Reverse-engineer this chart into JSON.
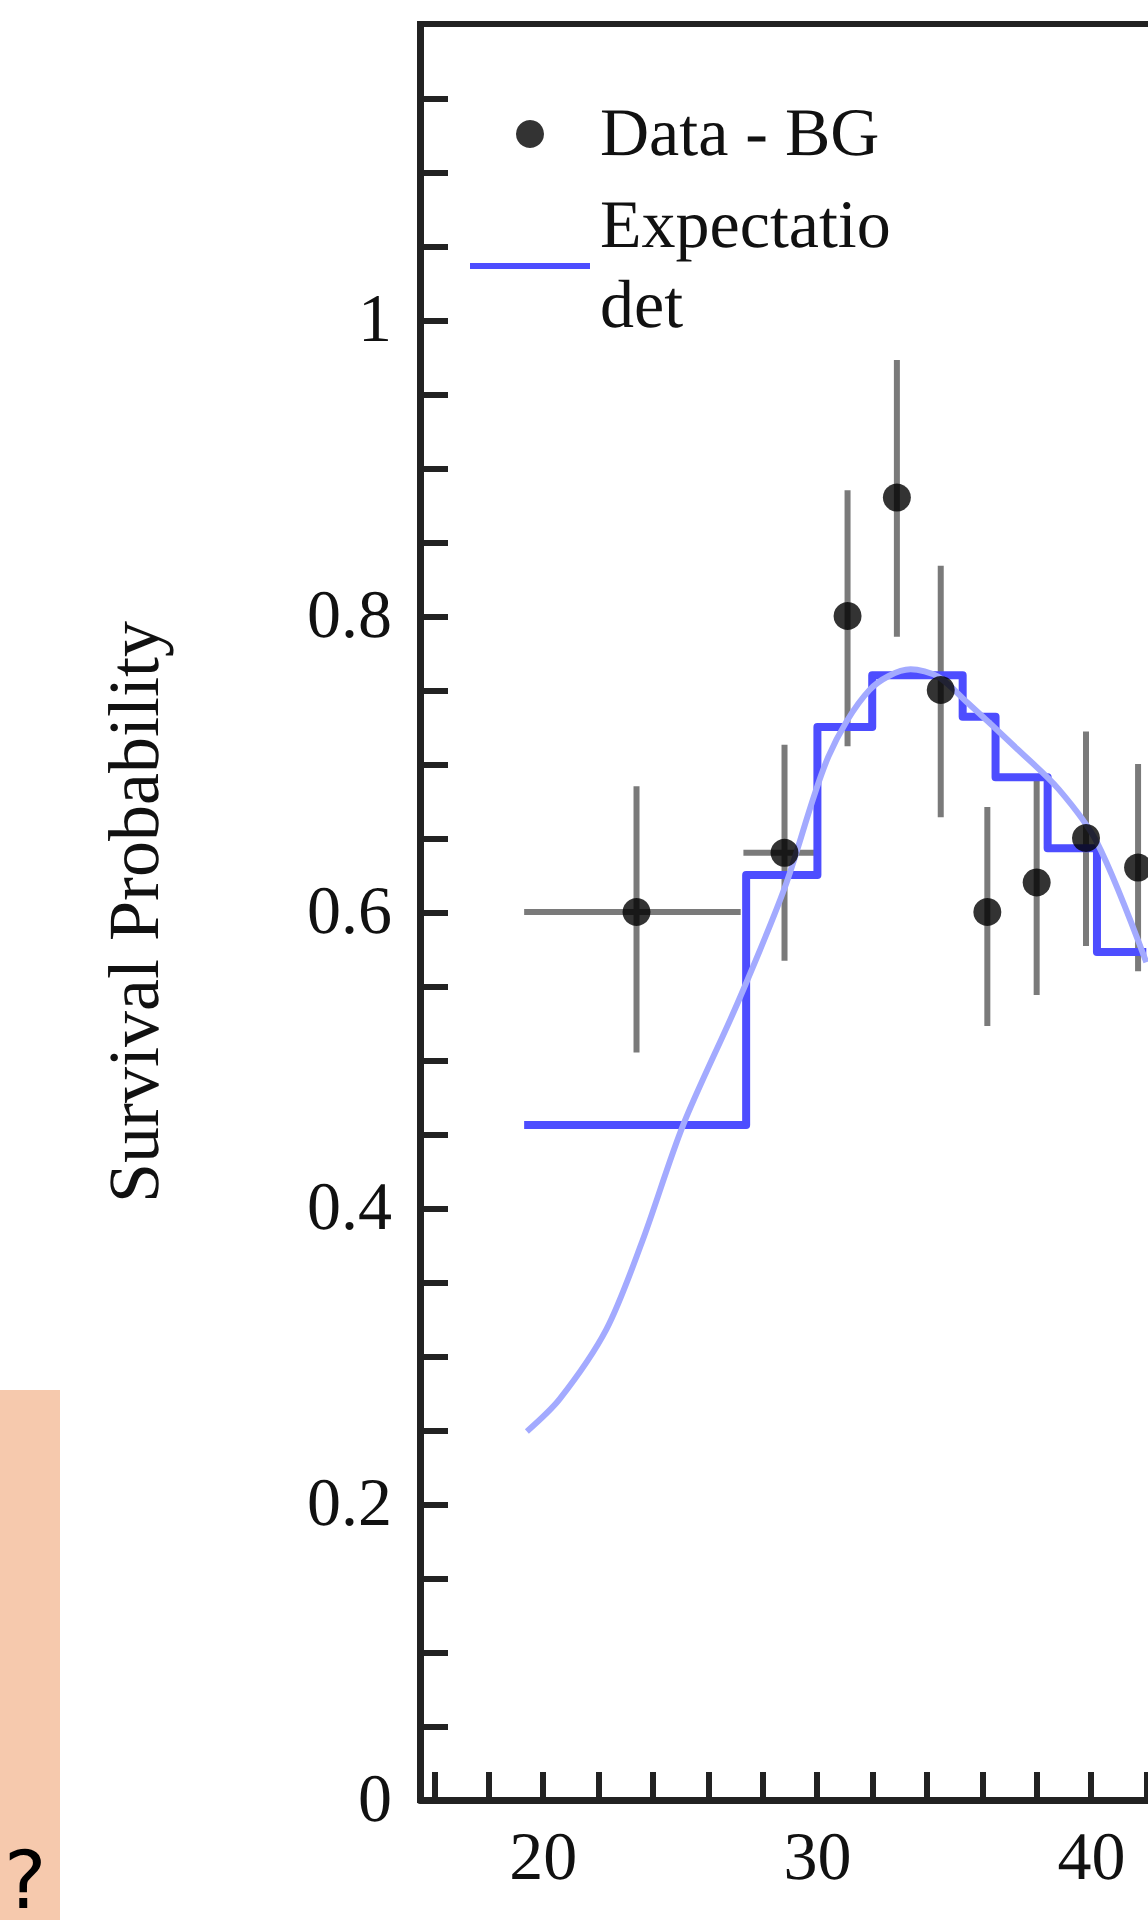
{
  "chart_data": {
    "type": "scatter",
    "ylabel": "Survival Probability",
    "xlim": [
      15.5,
      42.5
    ],
    "xticks": [
      {
        "value": 16,
        "label": null
      },
      {
        "value": 18,
        "label": null
      },
      20,
      {
        "value": 22,
        "label": null
      },
      {
        "value": 24,
        "label": null
      },
      {
        "value": 26,
        "label": null
      },
      {
        "value": 28,
        "label": null
      },
      30,
      {
        "value": 32,
        "label": null
      },
      {
        "value": 34,
        "label": null
      },
      {
        "value": 36,
        "label": null
      },
      {
        "value": 38,
        "label": null
      },
      40,
      {
        "value": 42,
        "label": null
      }
    ],
    "ylim": [
      0,
      1.2
    ],
    "yticks": [
      0,
      {
        "value": 0.05,
        "label": null
      },
      {
        "value": 0.1,
        "label": null
      },
      {
        "value": 0.15,
        "label": null
      },
      0.2,
      {
        "value": 0.25,
        "label": null
      },
      {
        "value": 0.3,
        "label": null
      },
      {
        "value": 0.35,
        "label": null
      },
      0.4,
      {
        "value": 0.45,
        "label": null
      },
      {
        "value": 0.5,
        "label": null
      },
      {
        "value": 0.55,
        "label": null
      },
      0.6,
      {
        "value": 0.65,
        "label": null
      },
      {
        "value": 0.7,
        "label": null
      },
      {
        "value": 0.75,
        "label": null
      },
      0.8,
      {
        "value": 0.85,
        "label": null
      },
      {
        "value": 0.9,
        "label": null
      },
      {
        "value": 0.95,
        "label": null
      },
      1,
      {
        "value": 1.05,
        "label": null
      },
      {
        "value": 1.1,
        "label": null
      },
      {
        "value": 1.15,
        "label": null
      }
    ],
    "grid": false,
    "legend": "top left",
    "marker": "none",
    "annotations": [
      "?"
    ],
    "series": [
      {
        "name": "Data - BG",
        "marker": "circle",
        "color": "#000000",
        "x": [
          23.4,
          28.8,
          31.1,
          32.9,
          34.5,
          36.2,
          38.0,
          39.8,
          41.7
        ],
        "values": [
          0.6,
          0.64,
          0.8,
          0.88,
          0.75,
          0.6,
          0.62,
          0.65,
          0.63
        ],
        "errors": [
          [
            0.505,
            0.685
          ],
          [
            0.567,
            0.713
          ],
          [
            0.712,
            0.885
          ],
          [
            0.786,
            0.973
          ],
          [
            0.664,
            0.834
          ],
          [
            0.523,
            0.671
          ],
          [
            0.544,
            0.69
          ],
          [
            0.577,
            0.722
          ],
          [
            0.56,
            0.7
          ]
        ],
        "xerrors": [
          [
            19.3,
            27.2
          ],
          [
            27.3,
            29.9
          ],
          null,
          null,
          null,
          null,
          null,
          null,
          null
        ]
      },
      {
        "name": "Expectatio\ndet",
        "type": "step",
        "color": "#4d4dff",
        "x": [
          19.3,
          27.4,
          30.0,
          32.0,
          35.3,
          36.5,
          38.4,
          40.2,
          42.0
        ],
        "values": [
          0.456,
          0.625,
          0.725,
          0.76,
          0.732,
          0.691,
          0.643,
          0.573,
          0.573
        ]
      },
      {
        "type": "line",
        "color": "#a3aaff",
        "x": [
          19.4,
          20.6,
          22.3,
          23.6,
          25.1,
          27.1,
          28.8,
          30.4,
          31.9,
          33.4,
          34.4,
          35.5,
          37.3,
          38.8,
          40.2,
          42.0
        ],
        "values": [
          0.249,
          0.271,
          0.318,
          0.377,
          0.456,
          0.539,
          0.616,
          0.705,
          0.75,
          0.764,
          0.759,
          0.741,
          0.71,
          0.683,
          0.647,
          0.566
        ]
      }
    ]
  }
}
